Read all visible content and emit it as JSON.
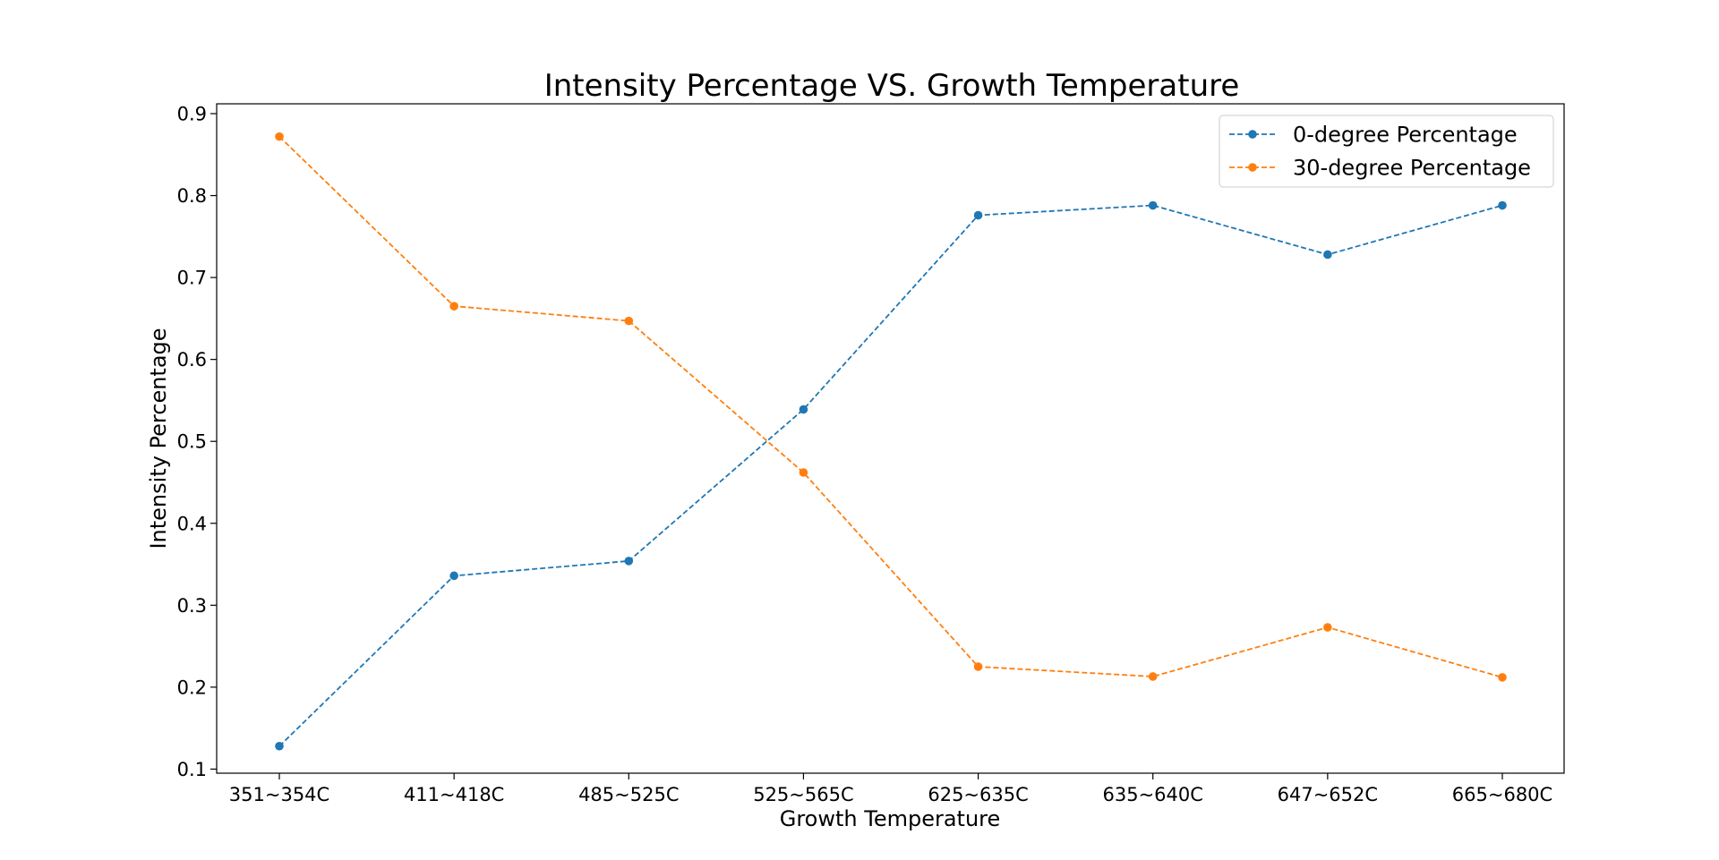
{
  "chart_data": {
    "type": "line",
    "title": "Intensity Percentage VS. Growth Temperature",
    "xlabel": "Growth Temperature",
    "ylabel": "Intensity Percentage",
    "categories": [
      "351~354C",
      "411~418C",
      "485~525C",
      "525~565C",
      "625~635C",
      "635~640C",
      "647~652C",
      "665~680C"
    ],
    "ylim": [
      0.095,
      0.912
    ],
    "yticks": [
      "0.1",
      "0.2",
      "0.3",
      "0.4",
      "0.5",
      "0.6",
      "0.7",
      "0.8",
      "0.9"
    ],
    "grid": false,
    "legend_position": "top-right",
    "series": [
      {
        "name": "0-degree Percentage",
        "color": "#1f77b4",
        "values": [
          0.128,
          0.336,
          0.354,
          0.539,
          0.776,
          0.788,
          0.728,
          0.788
        ]
      },
      {
        "name": "30-degree Percentage",
        "color": "#ff7f0e",
        "values": [
          0.872,
          0.665,
          0.647,
          0.462,
          0.225,
          0.213,
          0.273,
          0.212
        ]
      }
    ]
  }
}
